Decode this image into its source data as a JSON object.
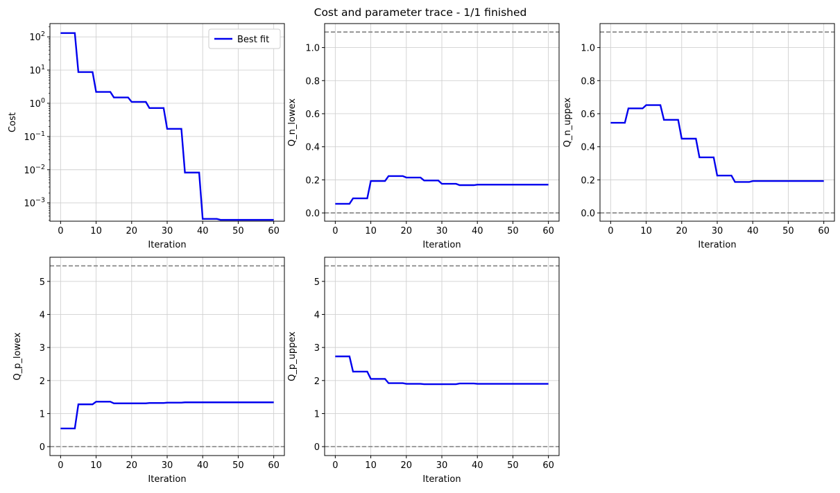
{
  "figure": {
    "title": "Cost and parameter trace - 1/1 finished"
  },
  "colors": {
    "series": "#0000ee",
    "bound_line": "#808080",
    "grid": "#d0d0d0",
    "axes": "#000000"
  },
  "chart_data": [
    {
      "type": "line",
      "id": "cost",
      "xlabel": "Iteration",
      "ylabel": "Cost",
      "yscale": "log",
      "xlim": [
        -3,
        63
      ],
      "ylim_log10": [
        -3.55,
        2.4
      ],
      "xticks": [
        0,
        10,
        20,
        30,
        40,
        50,
        60
      ],
      "yticks_log10": [
        -3,
        -2,
        -1,
        0,
        1,
        2
      ],
      "grid": true,
      "legend": {
        "position": "top-right",
        "entries": [
          "Best fit"
        ]
      },
      "series": [
        {
          "name": "Best fit",
          "x": [
            0,
            4,
            5,
            9,
            10,
            14,
            15,
            19,
            20,
            24,
            25,
            29,
            30,
            34,
            35,
            39,
            40,
            44,
            45,
            60
          ],
          "y": [
            130,
            130,
            8.7,
            8.7,
            2.2,
            2.2,
            1.5,
            1.5,
            1.1,
            1.1,
            0.72,
            0.72,
            0.17,
            0.17,
            0.0082,
            0.0082,
            0.00033,
            0.00033,
            0.00031,
            0.00031
          ]
        }
      ],
      "hlines": []
    },
    {
      "type": "line",
      "id": "q-n-lowex",
      "xlabel": "Iteration",
      "ylabel": "Q_n_lowex",
      "xlim": [
        -3,
        63
      ],
      "ylim": [
        -0.05,
        1.145
      ],
      "xticks": [
        0,
        10,
        20,
        30,
        40,
        50,
        60
      ],
      "yticks": [
        0.0,
        0.2,
        0.4,
        0.6,
        0.8,
        1.0
      ],
      "ytick_labels": [
        "0.0",
        "0.2",
        "0.4",
        "0.6",
        "0.8",
        "1.0"
      ],
      "grid": true,
      "series": [
        {
          "x": [
            0,
            4,
            5,
            9,
            10,
            14,
            15,
            19,
            20,
            24,
            25,
            29,
            30,
            34,
            35,
            39,
            40,
            60
          ],
          "y": [
            0.055,
            0.055,
            0.088,
            0.088,
            0.193,
            0.193,
            0.223,
            0.223,
            0.214,
            0.214,
            0.196,
            0.196,
            0.176,
            0.176,
            0.168,
            0.168,
            0.171,
            0.171
          ]
        }
      ],
      "hlines": [
        0.0,
        1.094
      ]
    },
    {
      "type": "line",
      "id": "q-n-uppex",
      "xlabel": "Iteration",
      "ylabel": "Q_n_uppex",
      "xlim": [
        -3,
        63
      ],
      "ylim": [
        -0.05,
        1.145
      ],
      "xticks": [
        0,
        10,
        20,
        30,
        40,
        50,
        60
      ],
      "yticks": [
        0.0,
        0.2,
        0.4,
        0.6,
        0.8,
        1.0
      ],
      "ytick_labels": [
        "0.0",
        "0.2",
        "0.4",
        "0.6",
        "0.8",
        "1.0"
      ],
      "grid": true,
      "series": [
        {
          "x": [
            0,
            4,
            5,
            9,
            10,
            14,
            15,
            19,
            20,
            24,
            25,
            29,
            30,
            34,
            35,
            39,
            40,
            60
          ],
          "y": [
            0.545,
            0.545,
            0.632,
            0.632,
            0.652,
            0.652,
            0.563,
            0.563,
            0.449,
            0.449,
            0.336,
            0.336,
            0.226,
            0.226,
            0.187,
            0.187,
            0.193,
            0.193
          ]
        }
      ],
      "hlines": [
        0.0,
        1.094
      ]
    },
    {
      "type": "line",
      "id": "q-p-lowex",
      "xlabel": "Iteration",
      "ylabel": "Q_p_lowex",
      "xlim": [
        -3,
        63
      ],
      "ylim": [
        -0.27,
        5.73
      ],
      "xticks": [
        0,
        10,
        20,
        30,
        40,
        50,
        60
      ],
      "yticks": [
        0,
        1,
        2,
        3,
        4,
        5
      ],
      "ytick_labels": [
        "0",
        "1",
        "2",
        "3",
        "4",
        "5"
      ],
      "grid": true,
      "series": [
        {
          "x": [
            0,
            4,
            5,
            9,
            10,
            14,
            15,
            19,
            20,
            24,
            25,
            29,
            30,
            34,
            35,
            39,
            40,
            60
          ],
          "y": [
            0.55,
            0.55,
            1.28,
            1.28,
            1.36,
            1.36,
            1.31,
            1.31,
            1.31,
            1.31,
            1.32,
            1.32,
            1.33,
            1.33,
            1.34,
            1.34,
            1.34,
            1.34
          ]
        }
      ],
      "hlines": [
        0.0,
        5.47
      ]
    },
    {
      "type": "line",
      "id": "q-p-uppex",
      "xlabel": "Iteration",
      "ylabel": "Q_p_uppex",
      "xlim": [
        -3,
        63
      ],
      "ylim": [
        -0.27,
        5.73
      ],
      "xticks": [
        0,
        10,
        20,
        30,
        40,
        50,
        60
      ],
      "yticks": [
        0,
        1,
        2,
        3,
        4,
        5
      ],
      "ytick_labels": [
        "0",
        "1",
        "2",
        "3",
        "4",
        "5"
      ],
      "grid": true,
      "series": [
        {
          "x": [
            0,
            4,
            5,
            9,
            10,
            14,
            15,
            19,
            20,
            24,
            25,
            29,
            30,
            34,
            35,
            39,
            40,
            60
          ],
          "y": [
            2.73,
            2.73,
            2.27,
            2.27,
            2.05,
            2.05,
            1.92,
            1.92,
            1.9,
            1.9,
            1.89,
            1.89,
            1.89,
            1.89,
            1.91,
            1.91,
            1.9,
            1.9
          ]
        }
      ],
      "hlines": [
        0.0,
        5.47
      ]
    }
  ]
}
